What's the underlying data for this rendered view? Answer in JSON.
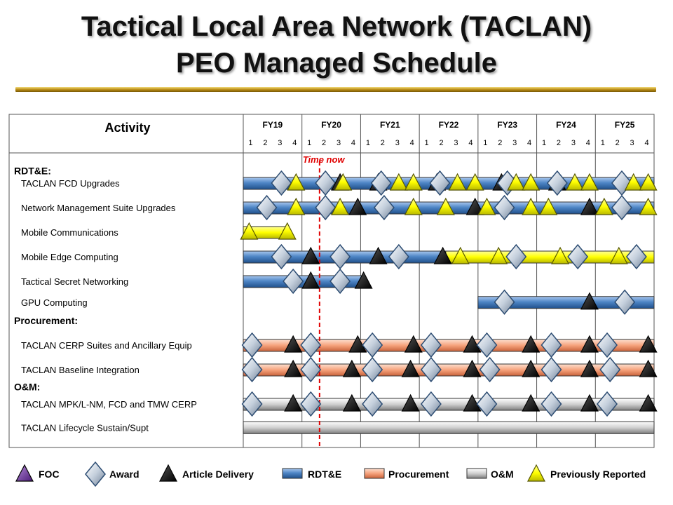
{
  "header": {
    "title_line1": "Tactical Local Area Network (TACLAN)",
    "title_line2": "PEO Managed Schedule"
  },
  "colors": {
    "rdte": "#4f86c6",
    "procurement": "#f6a27c",
    "om": "#c8c8c8",
    "previously_reported": "#ffff00",
    "foc": "#7030a0",
    "time_now": "#e00000",
    "title_rule": "#c9a227"
  },
  "chart_data": {
    "type": "gantt",
    "activity_header": "Activity",
    "fiscal_years": [
      "FY19",
      "FY20",
      "FY21",
      "FY22",
      "FY23",
      "FY24",
      "FY25"
    ],
    "quarters": [
      "1",
      "2",
      "3",
      "4"
    ],
    "time_now": {
      "label": "Time now",
      "fy_position": 20.3
    },
    "sections": [
      {
        "label": "RDT&E:",
        "row": 0.5
      },
      {
        "label": "Procurement:",
        "row": 6.6
      },
      {
        "label": "O&M:",
        "row": 9.3
      }
    ],
    "rows": [
      {
        "label": "TACLAN FCD Upgrades",
        "row": 1,
        "bars": [
          {
            "type": "rdte",
            "start": 19.0,
            "end": 26.0
          }
        ],
        "milestones": [
          {
            "kind": "award",
            "pos": 19.65
          },
          {
            "kind": "previously_reported",
            "pos": 19.9
          },
          {
            "kind": "award",
            "pos": 20.4
          },
          {
            "kind": "article_delivery",
            "pos": 20.65
          },
          {
            "kind": "previously_reported",
            "pos": 20.7
          },
          {
            "kind": "article_delivery",
            "pos": 21.3
          },
          {
            "kind": "award",
            "pos": 21.35
          },
          {
            "kind": "previously_reported",
            "pos": 21.65
          },
          {
            "kind": "previously_reported",
            "pos": 21.9
          },
          {
            "kind": "article_delivery",
            "pos": 22.3
          },
          {
            "kind": "award",
            "pos": 22.35
          },
          {
            "kind": "previously_reported",
            "pos": 22.65
          },
          {
            "kind": "previously_reported",
            "pos": 22.95
          },
          {
            "kind": "article_delivery",
            "pos": 23.4
          },
          {
            "kind": "award",
            "pos": 23.5
          },
          {
            "kind": "previously_reported",
            "pos": 23.65
          },
          {
            "kind": "previously_reported",
            "pos": 23.9
          },
          {
            "kind": "article_delivery",
            "pos": 24.35
          },
          {
            "kind": "award",
            "pos": 24.35
          },
          {
            "kind": "previously_reported",
            "pos": 24.65
          },
          {
            "kind": "previously_reported",
            "pos": 24.9
          },
          {
            "kind": "award",
            "pos": 25.45
          },
          {
            "kind": "previously_reported",
            "pos": 25.65
          },
          {
            "kind": "previously_reported",
            "pos": 25.9
          }
        ]
      },
      {
        "label": "Network Management Suite Upgrades",
        "row": 2,
        "bars": [
          {
            "type": "rdte",
            "start": 19.0,
            "end": 26.0
          }
        ],
        "milestones": [
          {
            "kind": "award",
            "pos": 19.4
          },
          {
            "kind": "previously_reported",
            "pos": 19.9
          },
          {
            "kind": "award",
            "pos": 20.4
          },
          {
            "kind": "previously_reported",
            "pos": 20.65
          },
          {
            "kind": "article_delivery",
            "pos": 20.95
          },
          {
            "kind": "award",
            "pos": 21.4
          },
          {
            "kind": "previously_reported",
            "pos": 21.9
          },
          {
            "kind": "previously_reported",
            "pos": 22.45
          },
          {
            "kind": "article_delivery",
            "pos": 22.95
          },
          {
            "kind": "previously_reported",
            "pos": 23.15
          },
          {
            "kind": "award",
            "pos": 23.45
          },
          {
            "kind": "previously_reported",
            "pos": 23.9
          },
          {
            "kind": "previously_reported",
            "pos": 24.2
          },
          {
            "kind": "article_delivery",
            "pos": 24.9
          },
          {
            "kind": "previously_reported",
            "pos": 25.15
          },
          {
            "kind": "award",
            "pos": 25.45
          },
          {
            "kind": "previously_reported",
            "pos": 25.9
          }
        ]
      },
      {
        "label": "Mobile Communications",
        "row": 3,
        "bars": [
          {
            "type": "previously_reported",
            "start": 19.0,
            "end": 19.75
          }
        ],
        "milestones": [
          {
            "kind": "previously_reported",
            "pos": 19.1
          },
          {
            "kind": "previously_reported",
            "pos": 19.75
          }
        ]
      },
      {
        "label": "Mobile Edge Computing",
        "row": 4,
        "bars": [
          {
            "type": "rdte",
            "start": 19.0,
            "end": 22.45
          },
          {
            "type": "previously_reported",
            "start": 22.45,
            "end": 26.0
          }
        ],
        "milestones": [
          {
            "kind": "award",
            "pos": 19.65
          },
          {
            "kind": "article_delivery",
            "pos": 20.15
          },
          {
            "kind": "award",
            "pos": 20.65
          },
          {
            "kind": "article_delivery",
            "pos": 21.3
          },
          {
            "kind": "award",
            "pos": 21.65
          },
          {
            "kind": "article_delivery",
            "pos": 22.4
          },
          {
            "kind": "previously_reported",
            "pos": 22.7
          },
          {
            "kind": "previously_reported",
            "pos": 23.35
          },
          {
            "kind": "award",
            "pos": 23.65
          },
          {
            "kind": "previously_reported",
            "pos": 24.4
          },
          {
            "kind": "award",
            "pos": 24.7
          },
          {
            "kind": "previously_reported",
            "pos": 25.4
          },
          {
            "kind": "award",
            "pos": 25.7
          }
        ]
      },
      {
        "label": "Tactical Secret Networking",
        "row": 5,
        "bars": [
          {
            "type": "rdte",
            "start": 19.0,
            "end": 21.05
          }
        ],
        "milestones": [
          {
            "kind": "award",
            "pos": 19.85
          },
          {
            "kind": "article_delivery",
            "pos": 20.15
          },
          {
            "kind": "award",
            "pos": 20.65
          },
          {
            "kind": "article_delivery",
            "pos": 21.05
          }
        ]
      },
      {
        "label": "GPU Computing",
        "row": 5.85,
        "bars": [
          {
            "type": "rdte",
            "start": 23.0,
            "end": 26.0
          }
        ],
        "milestones": [
          {
            "kind": "award",
            "pos": 23.45
          },
          {
            "kind": "article_delivery",
            "pos": 24.9
          },
          {
            "kind": "award",
            "pos": 25.5
          }
        ]
      },
      {
        "label": "TACLAN CERP Suites and Ancillary Equip",
        "row": 7.6,
        "bars": [
          {
            "type": "procurement",
            "start": 19.0,
            "end": 26.0
          }
        ],
        "milestones": [
          {
            "kind": "award",
            "pos": 19.15
          },
          {
            "kind": "article_delivery",
            "pos": 19.85
          },
          {
            "kind": "award",
            "pos": 20.15
          },
          {
            "kind": "article_delivery",
            "pos": 20.95
          },
          {
            "kind": "award",
            "pos": 21.2
          },
          {
            "kind": "article_delivery",
            "pos": 21.9
          },
          {
            "kind": "award",
            "pos": 22.2
          },
          {
            "kind": "article_delivery",
            "pos": 22.9
          },
          {
            "kind": "award",
            "pos": 23.15
          },
          {
            "kind": "article_delivery",
            "pos": 23.9
          },
          {
            "kind": "award",
            "pos": 24.25
          },
          {
            "kind": "article_delivery",
            "pos": 24.9
          },
          {
            "kind": "award",
            "pos": 25.2
          },
          {
            "kind": "article_delivery",
            "pos": 25.9
          }
        ]
      },
      {
        "label": "TACLAN Baseline Integration",
        "row": 8.6,
        "bars": [
          {
            "type": "procurement",
            "start": 19.0,
            "end": 26.0
          }
        ],
        "milestones": [
          {
            "kind": "award",
            "pos": 19.15
          },
          {
            "kind": "article_delivery",
            "pos": 19.85
          },
          {
            "kind": "award",
            "pos": 20.15
          },
          {
            "kind": "article_delivery",
            "pos": 20.85
          },
          {
            "kind": "award",
            "pos": 21.2
          },
          {
            "kind": "article_delivery",
            "pos": 21.85
          },
          {
            "kind": "award",
            "pos": 22.2
          },
          {
            "kind": "article_delivery",
            "pos": 22.9
          },
          {
            "kind": "award",
            "pos": 23.2
          },
          {
            "kind": "article_delivery",
            "pos": 23.9
          },
          {
            "kind": "award",
            "pos": 24.25
          },
          {
            "kind": "article_delivery",
            "pos": 24.9
          },
          {
            "kind": "award",
            "pos": 25.25
          },
          {
            "kind": "article_delivery",
            "pos": 25.9
          }
        ]
      },
      {
        "label": "TACLAN MPK/L-NM,  FCD and TMW CERP",
        "row": 10,
        "bars": [
          {
            "type": "om",
            "start": 19.0,
            "end": 26.0
          }
        ],
        "milestones": [
          {
            "kind": "award",
            "pos": 19.15
          },
          {
            "kind": "article_delivery",
            "pos": 19.85
          },
          {
            "kind": "award",
            "pos": 20.15
          },
          {
            "kind": "article_delivery",
            "pos": 20.85
          },
          {
            "kind": "award",
            "pos": 21.2
          },
          {
            "kind": "article_delivery",
            "pos": 21.85
          },
          {
            "kind": "award",
            "pos": 22.2
          },
          {
            "kind": "article_delivery",
            "pos": 22.9
          },
          {
            "kind": "award",
            "pos": 23.15
          },
          {
            "kind": "article_delivery",
            "pos": 23.9
          },
          {
            "kind": "award",
            "pos": 24.25
          },
          {
            "kind": "article_delivery",
            "pos": 24.9
          },
          {
            "kind": "award",
            "pos": 25.2
          },
          {
            "kind": "article_delivery",
            "pos": 25.9
          }
        ]
      },
      {
        "label": "TACLAN Lifecycle Sustain/Supt",
        "row": 10.95,
        "bars": [
          {
            "type": "om",
            "start": 19.0,
            "end": 26.0
          }
        ],
        "milestones": []
      }
    ],
    "legend": [
      {
        "kind": "foc",
        "label": "FOC"
      },
      {
        "kind": "award",
        "label": "Award"
      },
      {
        "kind": "article_delivery",
        "label": "Article Delivery"
      },
      {
        "kind": "rdte",
        "label": "RDT&E"
      },
      {
        "kind": "procurement",
        "label": "Procurement"
      },
      {
        "kind": "om",
        "label": "O&M"
      },
      {
        "kind": "previously_reported",
        "label": "Previously Reported"
      }
    ]
  }
}
